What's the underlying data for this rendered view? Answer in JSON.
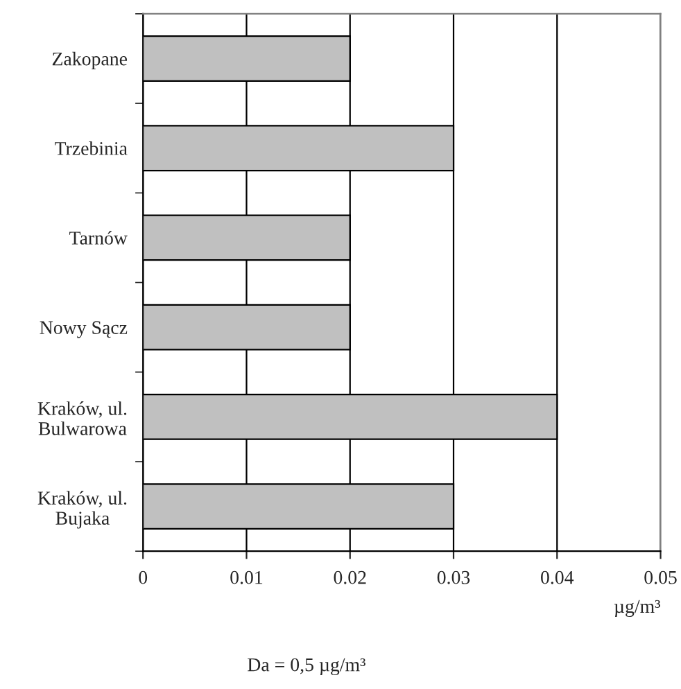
{
  "chart_data": {
    "type": "bar",
    "orientation": "horizontal",
    "categories": [
      "Zakopane",
      "Trzebinia",
      "Tarnów",
      "Nowy Sącz",
      "Kraków, ul.\nBulwarowa",
      "Kraków, ul.\nBujaka"
    ],
    "values": [
      0.02,
      0.03,
      0.02,
      0.02,
      0.04,
      0.03
    ],
    "color": "#c0c0c0",
    "xlim": [
      0,
      0.05
    ],
    "xticks": [
      0,
      0.01,
      0.02,
      0.03,
      0.04,
      0.05
    ],
    "xlabel": "µg/m³",
    "annotations": [
      "Da = 0,5 µg/m³"
    ],
    "grid": "x",
    "legend": false
  }
}
